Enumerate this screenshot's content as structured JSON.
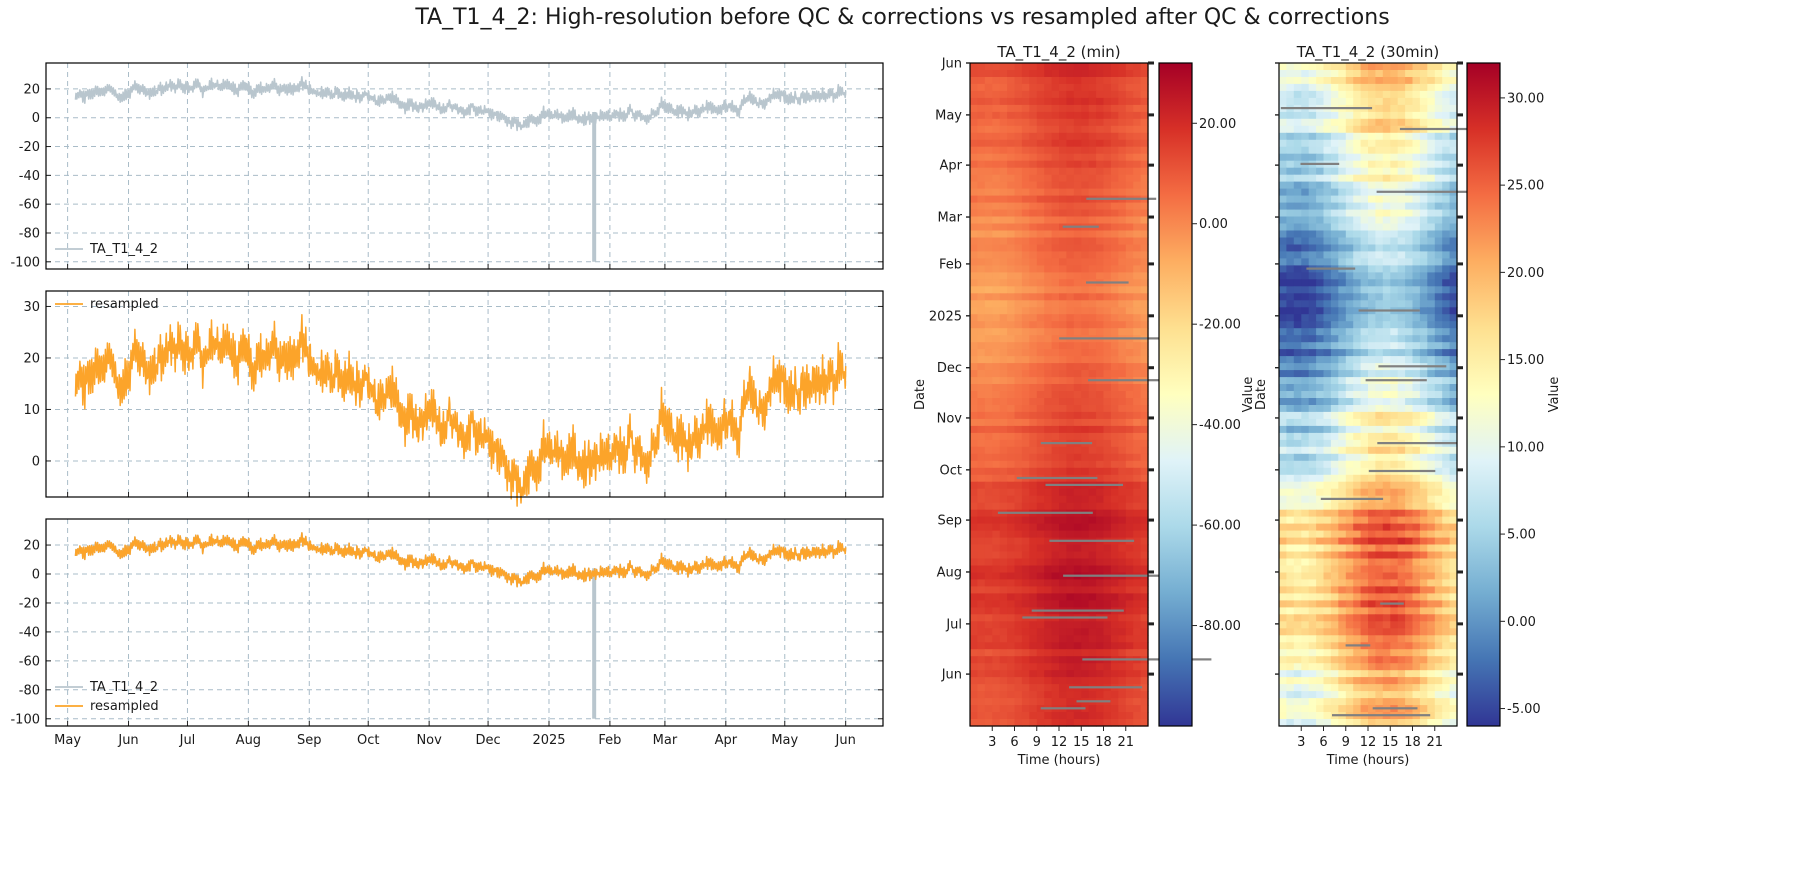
{
  "figure_title": "TA_T1_4_2: High-resolution before QC & corrections vs resampled after QC & corrections",
  "colors": {
    "raw": "#b9c6ce",
    "resampled": "#fca42a",
    "grid": "#a9bcc8",
    "missing": "#808080"
  },
  "chart_data": [
    {
      "type": "line",
      "panel": "top",
      "x_ticks": [
        "May",
        "Jun",
        "Jul",
        "Aug",
        "Sep",
        "Oct",
        "Nov",
        "Dec",
        "2025",
        "Feb",
        "Mar",
        "Apr",
        "May",
        "Jun"
      ],
      "x_tick_labels_shown": false,
      "xlim": [
        "2024-04-20",
        "2025-06-20"
      ],
      "y_ticks": [
        20,
        0,
        -20,
        -40,
        -60,
        -80,
        -100
      ],
      "ylim": [
        -105,
        38
      ],
      "grid": true,
      "legend": "lower-left",
      "series": [
        {
          "name": "TA_T1_4_2",
          "color": "#b9c6ce",
          "baseline_dates": [
            "2024-05-01",
            "2024-06-01",
            "2024-07-01",
            "2024-08-01",
            "2024-09-01",
            "2024-10-01",
            "2024-11-01",
            "2024-12-01",
            "2025-01-01",
            "2025-02-01",
            "2025-03-01",
            "2025-04-01",
            "2025-05-01",
            "2025-06-01"
          ],
          "baseline_values": [
            15,
            17,
            19,
            21,
            21,
            13,
            9,
            3,
            -1,
            2,
            5,
            9,
            13,
            17
          ],
          "spike": {
            "date": "2025-01-24",
            "value": -100
          }
        }
      ]
    },
    {
      "type": "line",
      "panel": "middle",
      "x_ticks": [
        "May",
        "Jun",
        "Jul",
        "Aug",
        "Sep",
        "Oct",
        "Nov",
        "Dec",
        "2025",
        "Feb",
        "Mar",
        "Apr",
        "May",
        "Jun"
      ],
      "x_tick_labels_shown": false,
      "xlim": [
        "2024-04-20",
        "2025-06-20"
      ],
      "y_ticks": [
        30,
        20,
        10,
        0
      ],
      "ylim": [
        -7,
        33
      ],
      "grid": true,
      "legend": "upper-left",
      "series": [
        {
          "name": "resampled",
          "color": "#fca42a",
          "baseline_dates": [
            "2024-05-01",
            "2024-06-01",
            "2024-07-01",
            "2024-08-01",
            "2024-09-01",
            "2024-10-01",
            "2024-11-01",
            "2024-12-01",
            "2025-01-01",
            "2025-02-01",
            "2025-03-01",
            "2025-04-01",
            "2025-05-01",
            "2025-06-01"
          ],
          "baseline_values": [
            15,
            17,
            19,
            21,
            21,
            13,
            9,
            3,
            -1,
            2,
            5,
            9,
            13,
            17
          ]
        }
      ]
    },
    {
      "type": "line",
      "panel": "bottom",
      "x_ticks": [
        "May",
        "Jun",
        "Jul",
        "Aug",
        "Sep",
        "Oct",
        "Nov",
        "Dec",
        "2025",
        "Feb",
        "Mar",
        "Apr",
        "May",
        "Jun"
      ],
      "x_tick_labels_shown": true,
      "xlim": [
        "2024-04-20",
        "2025-06-20"
      ],
      "y_ticks": [
        20,
        0,
        -20,
        -40,
        -60,
        -80,
        -100
      ],
      "ylim": [
        -105,
        38
      ],
      "grid": true,
      "legend": "lower-left",
      "series": [
        {
          "name": "TA_T1_4_2",
          "color": "#b9c6ce",
          "spike": {
            "date": "2025-01-24",
            "value": -100
          }
        },
        {
          "name": "resampled",
          "color": "#fca42a"
        }
      ]
    },
    {
      "type": "heatmap",
      "title": "TA_T1_4_2 (min)",
      "xlabel": "Time (hours)",
      "ylabel": "Date",
      "x_ticks": [
        "3",
        "6",
        "9",
        "12",
        "15",
        "18",
        "21"
      ],
      "xlim": [
        0,
        24
      ],
      "y_ticks": [
        "Jun",
        "May",
        "Apr",
        "Mar",
        "Feb",
        "2025",
        "Dec",
        "Nov",
        "Oct",
        "Sep",
        "Aug",
        "Jul",
        "Jun"
      ],
      "ylim": [
        "2024-05-01",
        "2025-06-01"
      ],
      "colorbar": {
        "label": "Value",
        "ticks": [
          "20.00",
          "0.00",
          "-20.00",
          "-40.00",
          "-60.00",
          "-80.00"
        ],
        "range": [
          -100,
          32
        ]
      },
      "colormap": "RdYlBu_r"
    },
    {
      "type": "heatmap",
      "title": "TA_T1_4_2 (30min)",
      "xlabel": "Time (hours)",
      "ylabel": "Date",
      "x_ticks": [
        "3",
        "6",
        "9",
        "12",
        "15",
        "18",
        "21"
      ],
      "xlim": [
        0,
        24
      ],
      "y_ticks": [],
      "ylim": [
        "2024-05-01",
        "2025-06-01"
      ],
      "colorbar": {
        "label": "Value",
        "ticks": [
          "30.00",
          "25.00",
          "20.00",
          "15.00",
          "10.00",
          "5.00",
          "0.00",
          "-5.00"
        ],
        "range": [
          -6,
          32
        ]
      },
      "colormap": "RdYlBu_r"
    }
  ]
}
